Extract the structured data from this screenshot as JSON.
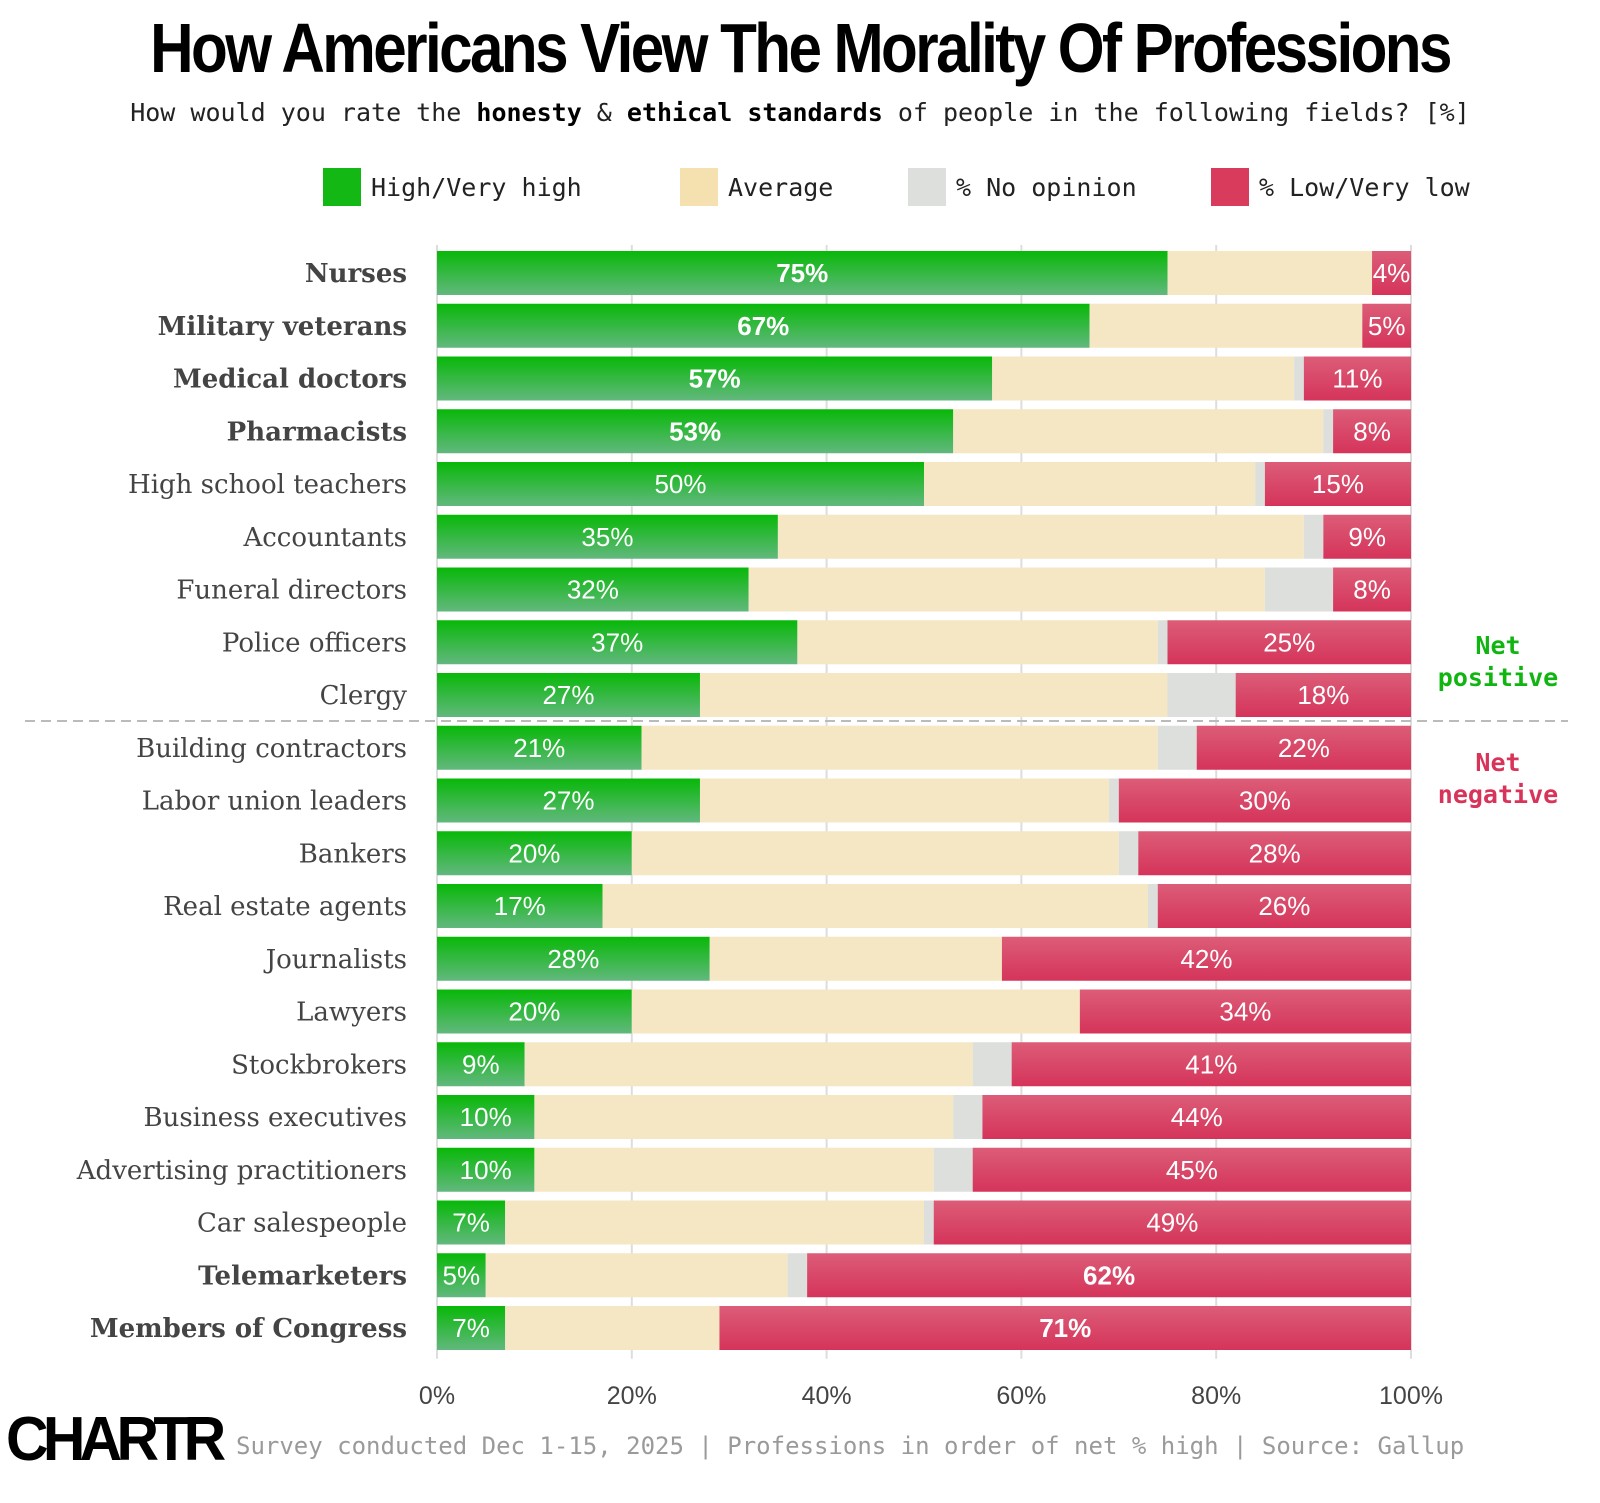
{
  "chart_data": {
    "type": "bar",
    "orientation": "horizontal",
    "stacked": true,
    "title": "How Americans View The Morality Of Professions",
    "subtitle": {
      "before": "How would you rate the ",
      "bold1": "honesty",
      "mid": " & ",
      "bold2": "ethical standards",
      "after": " of people in the following fields? [%]"
    },
    "legend_position": "top",
    "grid": true,
    "xlim": [
      0,
      100
    ],
    "x_ticks": [
      "0%",
      "20%",
      "40%",
      "60%",
      "80%",
      "100%"
    ],
    "colors": {
      "high": "#14b814",
      "average": "#f5e6c4",
      "no_opinion": "#dcdfdc",
      "low": "#d83b5c"
    },
    "series_names": {
      "high": "High/Very high",
      "average": "Average",
      "no_opinion": "% No opinion",
      "low": "% Low/Very low"
    },
    "categories": [
      "Nurses",
      "Military veterans",
      "Medical doctors",
      "Pharmacists",
      "High school teachers",
      "Accountants",
      "Funeral directors",
      "Police officers",
      "Clergy",
      "Building contractors",
      "Labor union leaders",
      "Bankers",
      "Real estate agents",
      "Journalists",
      "Lawyers",
      "Stockbrokers",
      "Business executives",
      "Advertising practitioners",
      "Car salespeople",
      "Telemarketers",
      "Members of Congress"
    ],
    "bold_categories": [
      "Nurses",
      "Military veterans",
      "Medical doctors",
      "Pharmacists",
      "Telemarketers",
      "Members of Congress"
    ],
    "series": [
      {
        "name": "High/Very high",
        "values": [
          75,
          67,
          57,
          53,
          50,
          35,
          32,
          37,
          27,
          21,
          27,
          20,
          17,
          28,
          20,
          9,
          10,
          10,
          7,
          5,
          7
        ]
      },
      {
        "name": "Average",
        "values": [
          21,
          28,
          31,
          38,
          34,
          54,
          53,
          37,
          48,
          53,
          42,
          50,
          56,
          30,
          46,
          46,
          43,
          41,
          43,
          31,
          22
        ]
      },
      {
        "name": "% No opinion",
        "values": [
          0,
          0,
          1,
          1,
          1,
          2,
          7,
          1,
          7,
          4,
          1,
          2,
          1,
          0,
          0,
          4,
          3,
          4,
          1,
          2,
          0
        ]
      },
      {
        "name": "% Low/Very low",
        "values": [
          4,
          5,
          11,
          8,
          15,
          9,
          8,
          25,
          18,
          22,
          30,
          28,
          26,
          42,
          34,
          41,
          44,
          45,
          49,
          62,
          71
        ]
      }
    ],
    "annotations": {
      "net_positive": "Net\npositive",
      "net_negative": "Net\nnegative"
    }
  },
  "footer": {
    "logo": "CHARTR",
    "note": "Survey conducted Dec 1-15, 2025 | Professions in order of net % high | Source: Gallup"
  }
}
